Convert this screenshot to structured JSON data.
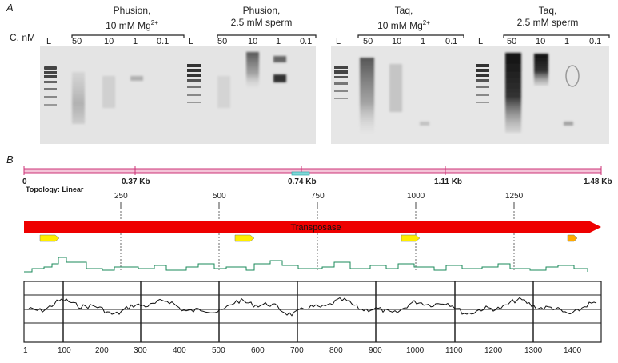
{
  "panel_a": {
    "letter": "A",
    "axis_label": "C, nM",
    "groups": [
      {
        "line1": "Phusion,",
        "line2": "10 mM Mg",
        "sup": "2+"
      },
      {
        "line1": "Phusion,",
        "line2": "2.5 mM sperm",
        "sup": ""
      },
      {
        "line1": "Taq,",
        "line2": "10 mM Mg",
        "sup": "2+"
      },
      {
        "line1": "Taq,",
        "line2": "2.5 mM sperm",
        "sup": ""
      }
    ],
    "lanes": [
      "L",
      "50",
      "10",
      "1",
      "0.1",
      "L",
      "50",
      "10",
      "1",
      "0.1",
      "L",
      "50",
      "10",
      "1",
      "0.1",
      "L",
      "50",
      "10",
      "1",
      "0.1"
    ]
  },
  "panel_b": {
    "letter": "B",
    "ruler_labels": [
      "0",
      "0.37 Kb",
      "0.74 Kb",
      "1.11 Kb",
      "1.48 Kb"
    ],
    "topology": "Topology: Linear",
    "position_labels": [
      "250",
      "500",
      "750",
      "1000",
      "1250"
    ],
    "feature_label": "Transposase",
    "axis_ticks": [
      "1",
      "100",
      "200",
      "300",
      "400",
      "500",
      "600",
      "700",
      "800",
      "900",
      "1000",
      "1100",
      "1200",
      "1300",
      "1400"
    ],
    "colors": {
      "feature": "#ee0000",
      "orf": "#ffee00",
      "orf_small": "#ffaa00",
      "gc_trace": "#1a8a5a",
      "ruler": "#cc3377"
    }
  }
}
